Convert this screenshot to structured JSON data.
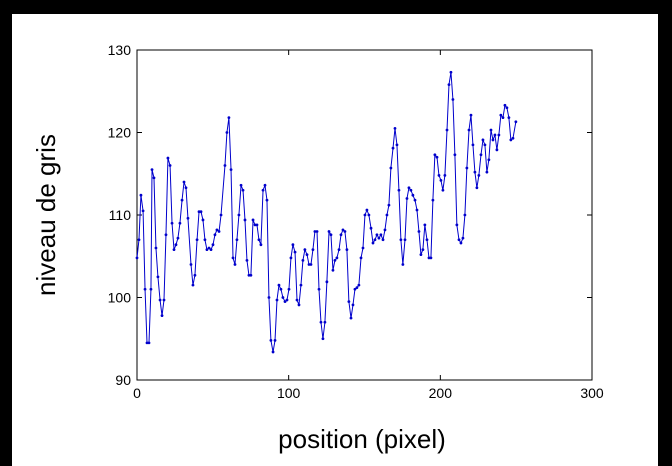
{
  "chart_data": {
    "type": "line",
    "xlabel": "position (pixel)",
    "ylabel": "niveau de gris",
    "xlim": [
      0,
      300
    ],
    "ylim": [
      90,
      130
    ],
    "xticks": [
      0,
      100,
      200,
      300
    ],
    "yticks": [
      90,
      100,
      110,
      120,
      130
    ],
    "series": [
      {
        "color": "#0000cc",
        "x": [
          0,
          1.3,
          2.6,
          4.0,
          5.3,
          6.6,
          7.9,
          9.2,
          9.9,
          11.2,
          12.5,
          13.8,
          15.2,
          16.5,
          17.8,
          19.1,
          20.4,
          21.8,
          23.1,
          24.4,
          25.7,
          27.0,
          28.3,
          29.7,
          31.0,
          32.3,
          33.6,
          35.6,
          36.9,
          38.2,
          39.6,
          40.9,
          42.2,
          43.5,
          44.8,
          46.1,
          47.5,
          48.8,
          50.1,
          51.4,
          52.7,
          54.1,
          55.4,
          58.0,
          59.3,
          60.6,
          62.0,
          63.3,
          64.6,
          65.9,
          67.2,
          68.6,
          69.9,
          71.2,
          72.5,
          73.8,
          75.1,
          76.5,
          77.8,
          79.1,
          80.4,
          81.7,
          83.1,
          84.4,
          85.7,
          87.0,
          88.3,
          89.7,
          91.0,
          92.3,
          93.6,
          94.9,
          96.2,
          97.6,
          98.9,
          100.2,
          101.5,
          102.8,
          104.2,
          105.5,
          106.8,
          108.1,
          109.4,
          110.7,
          112.1,
          113.4,
          114.7,
          116.0,
          117.3,
          118.7,
          120.0,
          121.3,
          122.6,
          123.9,
          125.2,
          126.6,
          127.9,
          129.2,
          130.5,
          131.8,
          133.2,
          134.5,
          135.8,
          137.1,
          138.4,
          139.7,
          141.1,
          142.4,
          143.7,
          145.0,
          146.3,
          147.7,
          149.0,
          150.3,
          151.6,
          152.9,
          154.3,
          155.6,
          156.9,
          158.2,
          159.5,
          160.8,
          162.2,
          163.5,
          164.8,
          166.1,
          167.4,
          168.8,
          170.1,
          171.4,
          172.7,
          174.0,
          175.3,
          176.7,
          178.0,
          179.3,
          180.6,
          181.9,
          183.3,
          184.6,
          185.9,
          187.2,
          188.5,
          189.8,
          191.2,
          192.5,
          193.8,
          195.1,
          196.4,
          197.8,
          199.1,
          200.4,
          201.7,
          203.0,
          204.4,
          205.7,
          207.0,
          208.3,
          209.6,
          210.9,
          212.3,
          213.6,
          214.9,
          216.2,
          217.5,
          218.9,
          220.2,
          221.5,
          222.8,
          224.1,
          225.4,
          226.8,
          228.1,
          229.4,
          230.7,
          232.0,
          233.4,
          234.7,
          236.0,
          237.3,
          238.6,
          239.9,
          241.3,
          242.6,
          243.9,
          245.2,
          246.5,
          247.9,
          249.8
        ],
        "values": [
          104.8,
          107,
          112.4,
          110.5,
          101,
          94.5,
          94.5,
          101,
          115.5,
          114.5,
          106,
          102.5,
          99.7,
          97.8,
          99.7,
          107.6,
          116.9,
          116,
          109,
          105.8,
          106.4,
          107.2,
          109,
          111.8,
          114,
          113.3,
          109.6,
          104,
          101.5,
          102.7,
          107,
          110.4,
          110.4,
          109.4,
          107,
          105.8,
          106,
          105.8,
          106.4,
          107.6,
          108.2,
          108,
          110,
          116,
          120,
          121.8,
          115.5,
          104.8,
          104,
          107,
          110,
          113.6,
          113,
          109.4,
          104.5,
          102.7,
          102.7,
          109.4,
          108.8,
          108.8,
          107,
          106.4,
          113,
          113.6,
          111.8,
          100,
          94.8,
          93.4,
          94.8,
          99.7,
          101.5,
          101,
          100,
          99.5,
          99.7,
          101,
          104.8,
          106.4,
          105.5,
          99.7,
          99.1,
          101.5,
          104.5,
          105.8,
          105.2,
          104,
          104,
          105.8,
          108,
          108,
          101,
          97,
          95,
          97,
          101.9,
          108,
          107.6,
          103.3,
          104.5,
          104.8,
          105.8,
          107.6,
          108.2,
          108,
          105.8,
          99.5,
          97.5,
          99.1,
          101,
          101.2,
          101.5,
          104.8,
          106,
          110,
          110.6,
          110,
          108.4,
          106.6,
          107,
          107.6,
          107.2,
          107.6,
          107,
          108.2,
          110,
          111.2,
          115.7,
          118.1,
          120.5,
          118.5,
          113,
          107,
          104,
          107,
          112,
          113.3,
          113,
          112.4,
          111.8,
          110.6,
          108,
          105.2,
          105.8,
          108.8,
          107,
          104.8,
          104.8,
          111.8,
          117.3,
          117,
          114.8,
          114.2,
          113,
          114.8,
          120.3,
          125.8,
          127.3,
          124,
          117.3,
          108.8,
          107,
          106.6,
          107.2,
          110,
          115.7,
          120.3,
          122.1,
          118.5,
          115.2,
          113.3,
          114.8,
          117.3,
          119.1,
          118.5,
          115.2,
          116.7,
          120.3,
          119.1,
          119.7,
          117.9,
          119.7,
          122.1,
          121.8,
          123.3,
          123,
          121.8,
          119.1,
          119.3,
          121.3
        ]
      }
    ]
  }
}
